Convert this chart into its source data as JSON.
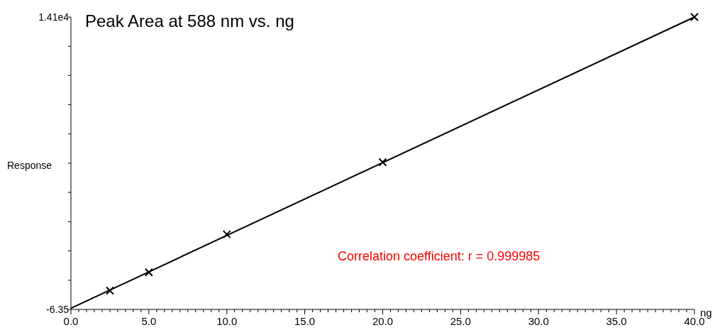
{
  "chart_data": {
    "type": "scatter",
    "title": "Peak Area at 588 nm vs. ng",
    "xlabel": "ng",
    "ylabel": "Response",
    "annotations": [
      "Correlation coefficient: r = 0.999985"
    ],
    "series": [
      {
        "color": "#000000",
        "marker": "cross",
        "x": [
          2.5,
          5,
          10,
          20,
          40
        ],
        "values": [
          900,
          1780,
          3620,
          7100,
          14100
        ]
      },
      {
        "type": "line",
        "color": "#000000",
        "marker": "none",
        "line_style": "solid",
        "x": [
          0,
          40
        ],
        "values": [
          50,
          14100
        ]
      }
    ],
    "xlim": [
      0,
      40
    ],
    "ylim": [
      -6.35,
      14100
    ],
    "xticks": [
      {
        "value": 0,
        "label": "0.0"
      },
      {
        "value": 0.5,
        "label": null
      },
      {
        "value": 1,
        "label": null
      },
      {
        "value": 1.5,
        "label": null
      },
      {
        "value": 2,
        "label": null
      },
      {
        "value": 2.5,
        "label": null
      },
      {
        "value": 3,
        "label": null
      },
      {
        "value": 3.5,
        "label": null
      },
      {
        "value": 4,
        "label": null
      },
      {
        "value": 4.5,
        "label": null
      },
      {
        "value": 5,
        "label": "5.0"
      },
      {
        "value": 5.5,
        "label": null
      },
      {
        "value": 6,
        "label": null
      },
      {
        "value": 6.5,
        "label": null
      },
      {
        "value": 7,
        "label": null
      },
      {
        "value": 7.5,
        "label": null
      },
      {
        "value": 8,
        "label": null
      },
      {
        "value": 8.5,
        "label": null
      },
      {
        "value": 9,
        "label": null
      },
      {
        "value": 9.5,
        "label": null
      },
      {
        "value": 10,
        "label": "10.0"
      },
      {
        "value": 10.5,
        "label": null
      },
      {
        "value": 11,
        "label": null
      },
      {
        "value": 11.5,
        "label": null
      },
      {
        "value": 12,
        "label": null
      },
      {
        "value": 12.5,
        "label": null
      },
      {
        "value": 13,
        "label": null
      },
      {
        "value": 13.5,
        "label": null
      },
      {
        "value": 14,
        "label": null
      },
      {
        "value": 14.5,
        "label": null
      },
      {
        "value": 15,
        "label": "15.0"
      },
      {
        "value": 15.5,
        "label": null
      },
      {
        "value": 16,
        "label": null
      },
      {
        "value": 16.5,
        "label": null
      },
      {
        "value": 17,
        "label": null
      },
      {
        "value": 17.5,
        "label": null
      },
      {
        "value": 18,
        "label": null
      },
      {
        "value": 18.5,
        "label": null
      },
      {
        "value": 19,
        "label": null
      },
      {
        "value": 19.5,
        "label": null
      },
      {
        "value": 20,
        "label": "20.0"
      },
      {
        "value": 20.5,
        "label": null
      },
      {
        "value": 21,
        "label": null
      },
      {
        "value": 21.5,
        "label": null
      },
      {
        "value": 22,
        "label": null
      },
      {
        "value": 22.5,
        "label": null
      },
      {
        "value": 23,
        "label": null
      },
      {
        "value": 23.5,
        "label": null
      },
      {
        "value": 24,
        "label": null
      },
      {
        "value": 24.5,
        "label": null
      },
      {
        "value": 25,
        "label": "25.0"
      },
      {
        "value": 25.5,
        "label": null
      },
      {
        "value": 26,
        "label": null
      },
      {
        "value": 26.5,
        "label": null
      },
      {
        "value": 27,
        "label": null
      },
      {
        "value": 27.5,
        "label": null
      },
      {
        "value": 28,
        "label": null
      },
      {
        "value": 28.5,
        "label": null
      },
      {
        "value": 29,
        "label": null
      },
      {
        "value": 29.5,
        "label": null
      },
      {
        "value": 30,
        "label": "30.0"
      },
      {
        "value": 30.5,
        "label": null
      },
      {
        "value": 31,
        "label": null
      },
      {
        "value": 31.5,
        "label": null
      },
      {
        "value": 32,
        "label": null
      },
      {
        "value": 32.5,
        "label": null
      },
      {
        "value": 33,
        "label": null
      },
      {
        "value": 33.5,
        "label": null
      },
      {
        "value": 34,
        "label": null
      },
      {
        "value": 34.5,
        "label": null
      },
      {
        "value": 35,
        "label": "35.0"
      },
      {
        "value": 35.5,
        "label": null
      },
      {
        "value": 36,
        "label": null
      },
      {
        "value": 36.5,
        "label": null
      },
      {
        "value": 37,
        "label": null
      },
      {
        "value": 37.5,
        "label": null
      },
      {
        "value": 38,
        "label": null
      },
      {
        "value": 38.5,
        "label": null
      },
      {
        "value": 39,
        "label": null
      },
      {
        "value": 39.5,
        "label": null
      },
      {
        "value": 40,
        "label": "40.0"
      }
    ],
    "yticks": [
      {
        "value": -6.35,
        "label": "-6.35"
      },
      {
        "value": 1400,
        "label": null
      },
      {
        "value": 2820,
        "label": null
      },
      {
        "value": 4230,
        "label": null
      },
      {
        "value": 5640,
        "label": null
      },
      {
        "value": 7050,
        "label": null
      },
      {
        "value": 8460,
        "label": null
      },
      {
        "value": 9870,
        "label": null
      },
      {
        "value": 11280,
        "label": null
      },
      {
        "value": 12690,
        "label": null
      },
      {
        "value": 14100,
        "label": "1.41e4"
      }
    ],
    "grid": false
  }
}
